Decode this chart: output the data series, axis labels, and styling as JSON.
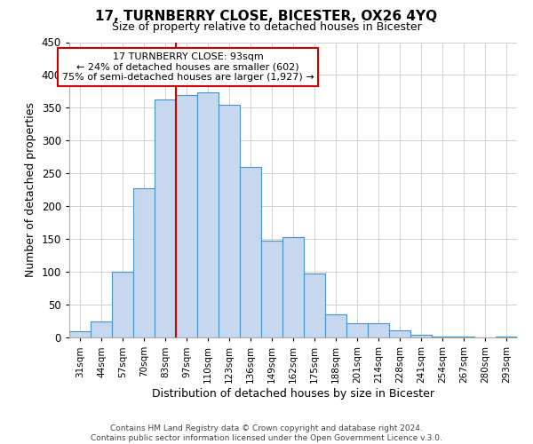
{
  "title": "17, TURNBERRY CLOSE, BICESTER, OX26 4YQ",
  "subtitle": "Size of property relative to detached houses in Bicester",
  "xlabel": "Distribution of detached houses by size in Bicester",
  "ylabel": "Number of detached properties",
  "footer_line1": "Contains HM Land Registry data © Crown copyright and database right 2024.",
  "footer_line2": "Contains public sector information licensed under the Open Government Licence v.3.0.",
  "bin_labels": [
    "31sqm",
    "44sqm",
    "57sqm",
    "70sqm",
    "83sqm",
    "97sqm",
    "110sqm",
    "123sqm",
    "136sqm",
    "149sqm",
    "162sqm",
    "175sqm",
    "188sqm",
    "201sqm",
    "214sqm",
    "228sqm",
    "241sqm",
    "254sqm",
    "267sqm",
    "280sqm",
    "293sqm"
  ],
  "bin_values": [
    10,
    25,
    100,
    228,
    363,
    370,
    373,
    355,
    260,
    148,
    153,
    97,
    35,
    22,
    22,
    11,
    4,
    2,
    1,
    0,
    2
  ],
  "bar_color": "#c5d8ed",
  "bar_edge_color": "#4a90c4",
  "bar_edge_width": 0.8,
  "marker_bin_index": 5,
  "marker_color": "#cc0000",
  "annotation_text": "17 TURNBERRY CLOSE: 93sqm\n← 24% of detached houses are smaller (602)\n75% of semi-detached houses are larger (1,927) →",
  "annotation_box_color": "#ffffff",
  "annotation_box_edge_color": "#cc0000",
  "ylim": [
    0,
    450
  ],
  "yticks": [
    0,
    50,
    100,
    150,
    200,
    250,
    300,
    350,
    400,
    450
  ],
  "background_color": "#ffffff",
  "grid_color": "#d0d0d0",
  "title_fontsize": 11,
  "subtitle_fontsize": 9,
  "xlabel_fontsize": 9,
  "ylabel_fontsize": 9,
  "annot_fontsize": 8,
  "footer_fontsize": 6.5
}
